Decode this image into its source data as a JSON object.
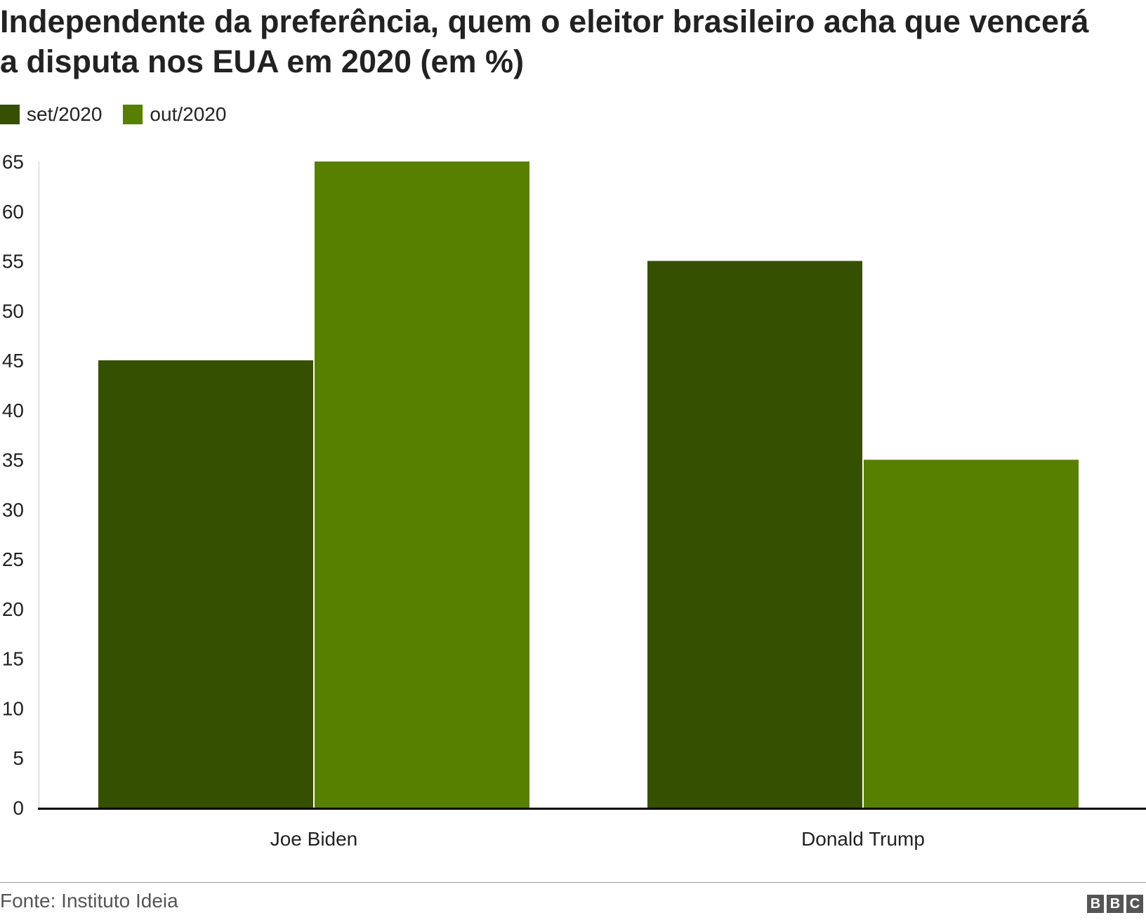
{
  "chart_data": {
    "type": "bar",
    "title": "Independente da preferência, quem o eleitor brasileiro acha que vencerá a disputa nos EUA em 2020 (em %)",
    "categories": [
      "Joe Biden",
      "Donald Trump"
    ],
    "series": [
      {
        "name": "set/2020",
        "values": [
          45,
          55
        ],
        "color": "#355000"
      },
      {
        "name": "out/2020",
        "values": [
          65,
          35
        ],
        "color": "#588000"
      }
    ],
    "ylim": [
      0,
      65
    ],
    "yticks": [
      "0",
      "5",
      "10",
      "15",
      "20",
      "25",
      "30",
      "35",
      "40",
      "45",
      "50",
      "55",
      "60",
      "65"
    ],
    "xlabel": "",
    "ylabel": "",
    "grid": false,
    "legend_position": "top-left"
  },
  "source": "Fonte: Instituto Ideia",
  "logo": {
    "letters": [
      "B",
      "B",
      "C"
    ]
  }
}
